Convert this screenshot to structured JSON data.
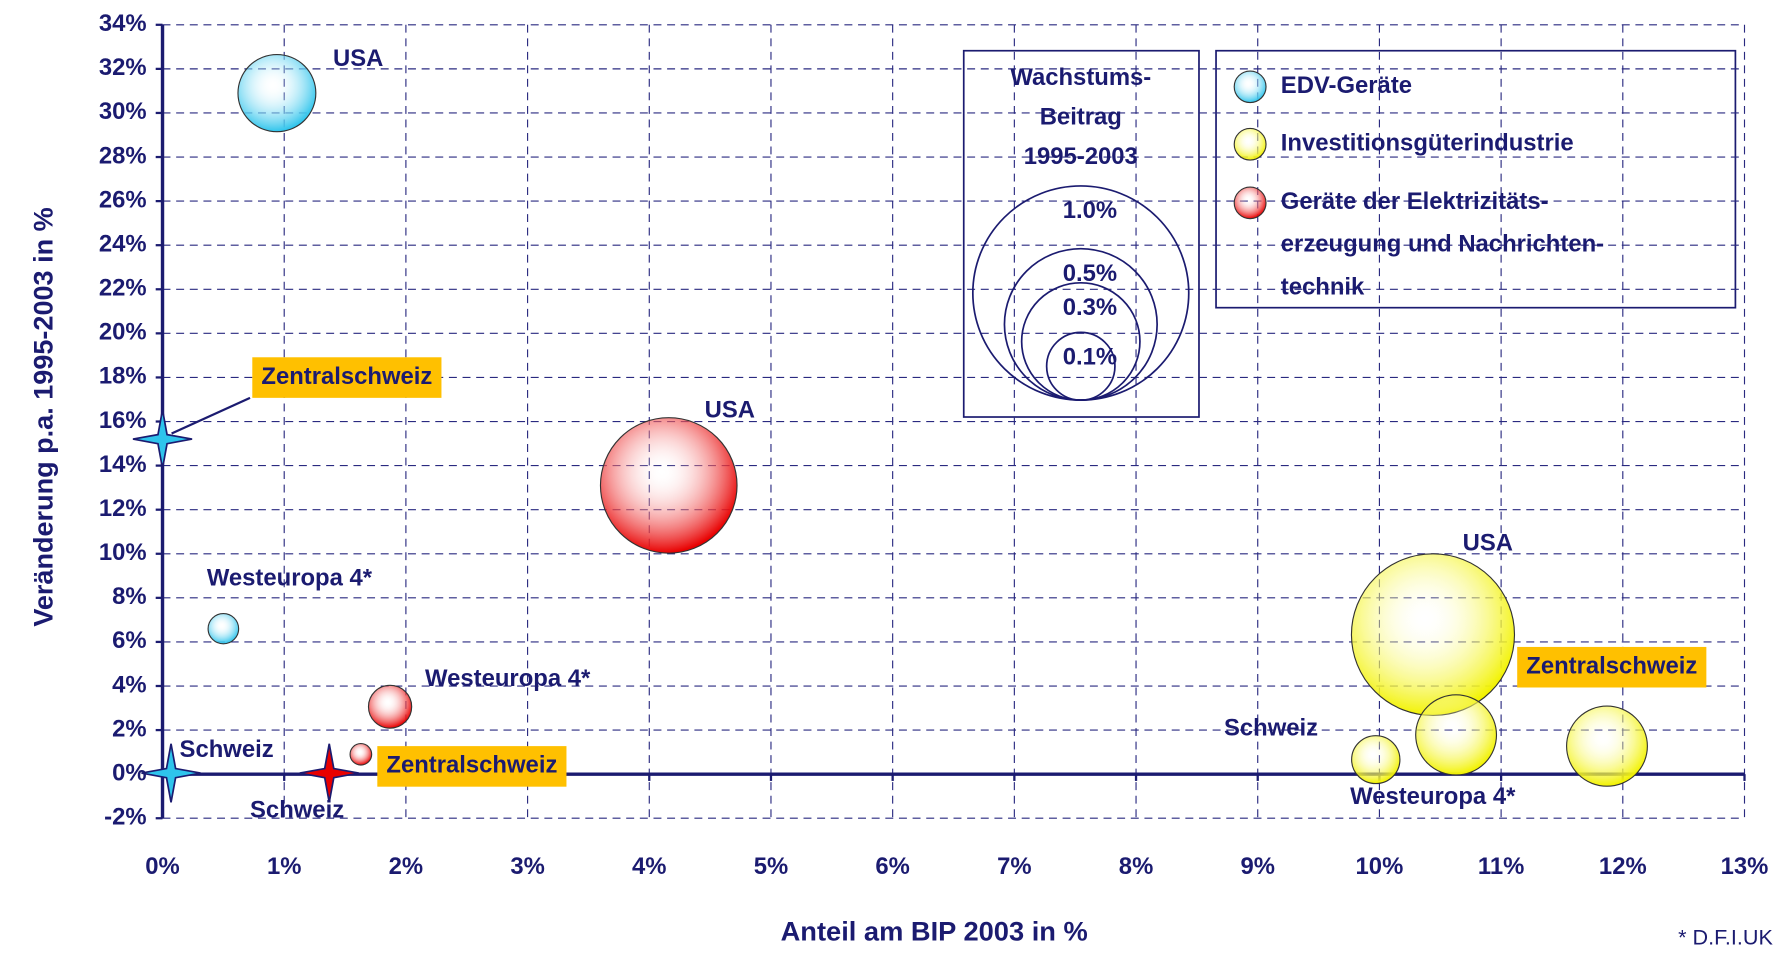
{
  "chart_data": {
    "type": "bubble",
    "xlabel": "Anteil am BIP 2003 in %",
    "ylabel": "Veränderung p.a. 1995-2003 in %",
    "footnote": "* D.F.I.UK",
    "xlim": [
      0,
      13
    ],
    "ylim": [
      -2,
      34
    ],
    "grid": true,
    "xticks": [
      {
        "value": 0,
        "label": "0%"
      },
      {
        "value": 1,
        "label": "1%"
      },
      {
        "value": 2,
        "label": "2%"
      },
      {
        "value": 3,
        "label": "3%"
      },
      {
        "value": 4,
        "label": "4%"
      },
      {
        "value": 5,
        "label": "5%"
      },
      {
        "value": 6,
        "label": "6%"
      },
      {
        "value": 7,
        "label": "7%"
      },
      {
        "value": 8,
        "label": "8%"
      },
      {
        "value": 9,
        "label": "9%"
      },
      {
        "value": 10,
        "label": "10%"
      },
      {
        "value": 11,
        "label": "11%"
      },
      {
        "value": 12,
        "label": "12%"
      },
      {
        "value": 13,
        "label": "13%"
      }
    ],
    "yticks": [
      {
        "value": -2,
        "label": "-2%"
      },
      {
        "value": 0,
        "label": "0%"
      },
      {
        "value": 2,
        "label": "2%"
      },
      {
        "value": 4,
        "label": "4%"
      },
      {
        "value": 6,
        "label": "6%"
      },
      {
        "value": 8,
        "label": "8%"
      },
      {
        "value": 10,
        "label": "10%"
      },
      {
        "value": 12,
        "label": "12%"
      },
      {
        "value": 14,
        "label": "14%"
      },
      {
        "value": 16,
        "label": "16%"
      },
      {
        "value": 18,
        "label": "18%"
      },
      {
        "value": 20,
        "label": "20%"
      },
      {
        "value": 22,
        "label": "22%"
      },
      {
        "value": 24,
        "label": "24%"
      },
      {
        "value": 26,
        "label": "26%"
      },
      {
        "value": 28,
        "label": "28%"
      },
      {
        "value": 30,
        "label": "30%"
      },
      {
        "value": 32,
        "label": "32%"
      },
      {
        "value": 34,
        "label": "34%"
      }
    ],
    "size_legend": {
      "title": [
        "Wachstums-",
        "Beitrag",
        "1995-2003"
      ],
      "values": [
        1.0,
        0.5,
        0.3,
        0.1
      ],
      "value_labels": [
        "1.0%",
        "0.5%",
        "0.3%",
        "0.1%"
      ]
    },
    "series": [
      {
        "name": "EDV-Geräte",
        "color": "#2ec4ec",
        "points": [
          {
            "label": "USA",
            "x": 0.94,
            "y": 30.9,
            "size": 0.13
          },
          {
            "label": "Westeuropa 4*",
            "x": 0.5,
            "y": 6.6,
            "size": 0.02
          },
          {
            "label": "Schweiz",
            "x": 0.07,
            "y": 0.05,
            "size": null
          },
          {
            "label": "Zentralschweiz",
            "x": 0.0,
            "y": 15.2,
            "size": null,
            "highlight": true
          }
        ]
      },
      {
        "name": "Investitionsgüterindustrie",
        "color": "#f2f200",
        "points": [
          {
            "label": "USA",
            "x": 10.44,
            "y": 6.33,
            "size": 0.57
          },
          {
            "label": "Westeuropa 4*",
            "x": 10.63,
            "y": 1.78,
            "size": 0.14
          },
          {
            "label": "Schweiz",
            "x": 9.97,
            "y": 0.66,
            "size": 0.05
          },
          {
            "label": "Zentralschweiz",
            "x": 11.87,
            "y": 1.27,
            "size": 0.14,
            "highlight": true
          }
        ]
      },
      {
        "name": "Geräte der Elektrizitäts-\nerzeugung und Nachrichten-\ntechnik",
        "color": "#e80000",
        "points": [
          {
            "label": "USA",
            "x": 4.16,
            "y": 13.1,
            "size": 0.4
          },
          {
            "label": "Westeuropa 4*",
            "x": 1.87,
            "y": 3.06,
            "size": 0.04
          },
          {
            "label": "Schweiz",
            "x": 1.37,
            "y": 0.05,
            "size": null
          },
          {
            "label": "Zentralschweiz",
            "x": 1.63,
            "y": 0.9,
            "size": 0.01,
            "highlight": true
          }
        ]
      }
    ]
  }
}
